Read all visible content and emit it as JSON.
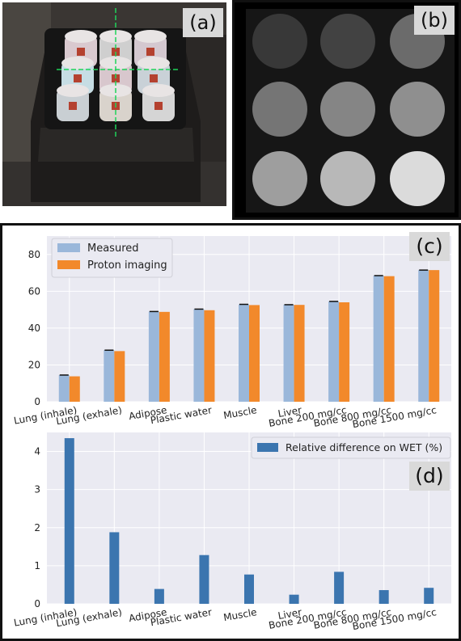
{
  "panel_tags": {
    "a": "(a)",
    "b": "(b)",
    "c": "(c)",
    "d": "(d)"
  },
  "photo": {
    "description_icon": "phantom-photo-icon",
    "laser_color": "#1fd35a",
    "insert_colors": [
      "#d9c9cf",
      "#cfcfcf",
      "#d4c8d0",
      "#c6dde4",
      "#d8c7cd",
      "#c9d1d7",
      "#c9cfd3",
      "#d9d3cc",
      "#d5d5d5"
    ]
  },
  "proton_image": {
    "intensities": [
      0.22,
      0.26,
      0.42,
      0.46,
      0.52,
      0.56,
      0.62,
      0.72,
      0.86
    ]
  },
  "chart_data": [
    {
      "type": "bar",
      "categories": [
        "Lung (inhale)",
        "Lung (exhale)",
        "Adipose",
        "Plastic water",
        "Muscle",
        "Liver",
        "Bone 200 mg/cc",
        "Bone 800 mg/cc",
        "Bone 1500 mg/cc"
      ],
      "series": [
        {
          "name": "Measured",
          "values": [
            14.5,
            28.0,
            49.0,
            50.3,
            52.9,
            52.7,
            54.5,
            68.5,
            71.5
          ],
          "color": "#9ab7da"
        },
        {
          "name": "Proton imaging",
          "values": [
            13.8,
            27.5,
            48.8,
            49.7,
            52.5,
            52.6,
            54.0,
            68.2,
            71.5
          ],
          "color": "#f2892b"
        }
      ],
      "ylim": [
        0,
        90
      ],
      "yticks": [
        "0",
        "20",
        "40",
        "60",
        "80"
      ],
      "ytick_values": [
        0,
        20,
        40,
        60,
        80
      ],
      "grid": true,
      "legend": "top-left"
    },
    {
      "type": "bar",
      "categories": [
        "Lung (inhale)",
        "Lung (exhale)",
        "Adipose",
        "Plastic water",
        "Muscle",
        "Liver",
        "Bone 200 mg/cc",
        "Bone 800 mg/cc",
        "Bone 1500 mg/cc"
      ],
      "series": [
        {
          "name": "Relative difference on WET (%)",
          "values": [
            4.35,
            1.88,
            0.39,
            1.28,
            0.77,
            0.24,
            0.84,
            0.36,
            0.42
          ],
          "color": "#3b75af"
        }
      ],
      "ylim": [
        0,
        4.5
      ],
      "yticks": [
        "0",
        "1",
        "2",
        "3",
        "4"
      ],
      "ytick_values": [
        0,
        1,
        2,
        3,
        4
      ],
      "grid": true,
      "legend": "top-right"
    }
  ]
}
